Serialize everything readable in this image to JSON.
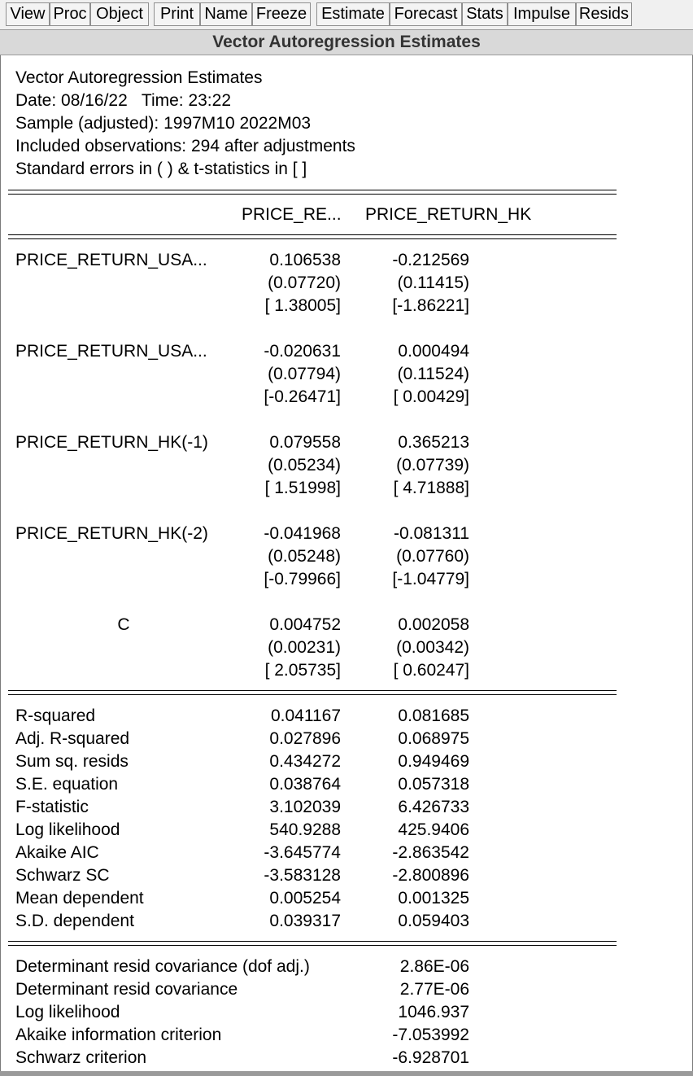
{
  "toolbar": {
    "buttons": [
      "View",
      "Proc",
      "Object",
      "Print",
      "Name",
      "Freeze",
      "Estimate",
      "Forecast",
      "Stats",
      "Impulse",
      "Resids"
    ]
  },
  "window_title": "Vector Autoregression Estimates",
  "header": {
    "line1": "Vector Autoregression Estimates",
    "line2": "Date: 08/16/22   Time: 23:22",
    "line3": "Sample (adjusted): 1997M10 2022M03",
    "line4": "Included observations: 294 after adjustments",
    "line5": "Standard errors in ( ) & t-statistics in [ ]"
  },
  "columns": [
    "PRICE_RE...",
    "PRICE_RETURN_HK"
  ],
  "coefficients": [
    {
      "name": "PRICE_RETURN_USA...",
      "values": [
        {
          "coef": "0.106538",
          "se": "(0.07720)",
          "t": "[ 1.38005]"
        },
        {
          "coef": "-0.212569",
          "se": "(0.11415)",
          "t": "[-1.86221]"
        }
      ]
    },
    {
      "name": "PRICE_RETURN_USA...",
      "values": [
        {
          "coef": "-0.020631",
          "se": "(0.07794)",
          "t": "[-0.26471]"
        },
        {
          "coef": "0.000494",
          "se": "(0.11524)",
          "t": "[ 0.00429]"
        }
      ]
    },
    {
      "name": "PRICE_RETURN_HK(-1)",
      "values": [
        {
          "coef": "0.079558",
          "se": "(0.05234)",
          "t": "[ 1.51998]"
        },
        {
          "coef": "0.365213",
          "se": "(0.07739)",
          "t": "[ 4.71888]"
        }
      ]
    },
    {
      "name": "PRICE_RETURN_HK(-2)",
      "values": [
        {
          "coef": "-0.041968",
          "se": "(0.05248)",
          "t": "[-0.79966]"
        },
        {
          "coef": "-0.081311",
          "se": "(0.07760)",
          "t": "[-1.04779]"
        }
      ]
    },
    {
      "name": "C",
      "values": [
        {
          "coef": "0.004752",
          "se": "(0.00231)",
          "t": "[ 2.05735]"
        },
        {
          "coef": "0.002058",
          "se": "(0.00342)",
          "t": "[ 0.60247]"
        }
      ]
    }
  ],
  "stats": [
    {
      "label": "R-squared",
      "v1": "0.041167",
      "v2": "0.081685"
    },
    {
      "label": "Adj. R-squared",
      "v1": "0.027896",
      "v2": "0.068975"
    },
    {
      "label": "Sum sq. resids",
      "v1": "0.434272",
      "v2": "0.949469"
    },
    {
      "label": "S.E. equation",
      "v1": "0.038764",
      "v2": "0.057318"
    },
    {
      "label": "F-statistic",
      "v1": "3.102039",
      "v2": "6.426733"
    },
    {
      "label": "Log likelihood",
      "v1": "540.9288",
      "v2": "425.9406"
    },
    {
      "label": "Akaike AIC",
      "v1": "-3.645774",
      "v2": "-2.863542"
    },
    {
      "label": "Schwarz SC",
      "v1": "-3.583128",
      "v2": "-2.800896"
    },
    {
      "label": "Mean dependent",
      "v1": "0.005254",
      "v2": "0.001325"
    },
    {
      "label": "S.D. dependent",
      "v1": "0.039317",
      "v2": "0.059403"
    }
  ],
  "system_stats": [
    {
      "label": "Determinant resid covariance (dof adj.)",
      "value": "2.86E-06"
    },
    {
      "label": "Determinant resid covariance",
      "value": "2.77E-06"
    },
    {
      "label": "Log likelihood",
      "value": "1046.937"
    },
    {
      "label": "Akaike information criterion",
      "value": "-7.053992"
    },
    {
      "label": "Schwarz criterion",
      "value": "-6.928701"
    }
  ]
}
